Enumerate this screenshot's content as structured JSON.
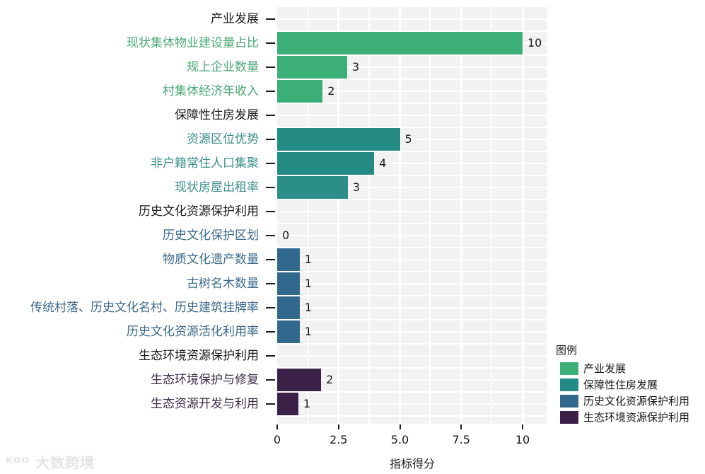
{
  "chart_data": {
    "type": "bar",
    "orientation": "horizontal",
    "title": "",
    "xlabel": "指标得分",
    "ylabel": "",
    "xlim": [
      0,
      11
    ],
    "xticks": [
      0,
      2.5,
      5.0,
      7.5,
      10
    ],
    "xtick_labels": [
      "0",
      "2.5",
      "5.0",
      "7.5",
      "10"
    ],
    "grid": true,
    "legend_position": "right-bottom",
    "legend_title": "图例",
    "categories": [
      "产业发展",
      "现状集体物业建设量占比",
      "规上企业数量",
      "村集体经济年收入",
      "保障性住房发展",
      "资源区位优势",
      "非户籍常住人口集聚",
      "现状房屋出租率",
      "历史文化资源保护利用",
      "历史文化保护区划",
      "物质文化遗产数量",
      "古树名木数量",
      "传统村落、历史文化名村、历史建筑挂牌率",
      "历史文化资源活化利用率",
      "生态环境资源保护利用",
      "生态环境保护与修复",
      "生态资源开发与利用"
    ],
    "series": [
      {
        "name": "产业发展",
        "color": "#3cae77",
        "label_color": "#4aa875",
        "items": [
          {
            "category": "现状集体物业建设量占比",
            "value": 10,
            "label": "10"
          },
          {
            "category": "规上企业数量",
            "value": 2.85,
            "label": "3"
          },
          {
            "category": "村集体经济年收入",
            "value": 1.85,
            "label": "2"
          }
        ]
      },
      {
        "name": "保障性住房发展",
        "color": "#238a84",
        "label_color": "#3a8f8a",
        "items": [
          {
            "category": "资源区位优势",
            "value": 5.0,
            "label": "5"
          },
          {
            "category": "非户籍常住人口集聚",
            "value": 3.95,
            "label": "4"
          },
          {
            "category": "现状房屋出租率",
            "value": 2.88,
            "label": "3"
          }
        ]
      },
      {
        "name": "历史文化资源保护利用",
        "color": "#31688e",
        "label_color": "#3d6a8c",
        "items": [
          {
            "category": "历史文化保护区划",
            "value": 0,
            "label": "0"
          },
          {
            "category": "物质文化遗产数量",
            "value": 0.92,
            "label": "1"
          },
          {
            "category": "古树名木数量",
            "value": 0.92,
            "label": "1"
          },
          {
            "category": "传统村落、历史文化名村、历史建筑挂牌率",
            "value": 0.92,
            "label": "1"
          },
          {
            "category": "历史文化资源活化利用率",
            "value": 0.92,
            "label": "1"
          }
        ]
      },
      {
        "name": "生态环境资源保护利用",
        "color": "#3b2147",
        "label_color": "#3f2c4b",
        "items": [
          {
            "category": "生态环境保护与修复",
            "value": 1.79,
            "label": "2"
          },
          {
            "category": "生态资源开发与利用",
            "value": 0.86,
            "label": "1"
          }
        ]
      }
    ]
  },
  "rows": [
    {
      "label": "产业发展",
      "type": "group",
      "color": "#1a1a1a"
    },
    {
      "label": "现状集体物业建设量占比",
      "type": "item",
      "value": 10,
      "value_label": "10",
      "color": "#4aa875",
      "bar_color": "#3cae77"
    },
    {
      "label": "规上企业数量",
      "type": "item",
      "value": 2.85,
      "value_label": "3",
      "color": "#4aa875",
      "bar_color": "#3cae77"
    },
    {
      "label": "村集体经济年收入",
      "type": "item",
      "value": 1.85,
      "value_label": "2",
      "color": "#4aa875",
      "bar_color": "#3cae77"
    },
    {
      "label": "保障性住房发展",
      "type": "group",
      "color": "#1a1a1a"
    },
    {
      "label": "资源区位优势",
      "type": "item",
      "value": 5.0,
      "value_label": "5",
      "color": "#3a8f8a",
      "bar_color": "#238a84"
    },
    {
      "label": "非户籍常住人口集聚",
      "type": "item",
      "value": 3.95,
      "value_label": "4",
      "color": "#3a8f8a",
      "bar_color": "#238a84"
    },
    {
      "label": "现状房屋出租率",
      "type": "item",
      "value": 2.88,
      "value_label": "3",
      "color": "#3a8f8a",
      "bar_color": "#2c8e88"
    },
    {
      "label": "历史文化资源保护利用",
      "type": "group",
      "color": "#1a1a1a"
    },
    {
      "label": "历史文化保护区划",
      "type": "item",
      "value": 0,
      "value_label": "0",
      "color": "#3d6a8c",
      "bar_color": "#31688e"
    },
    {
      "label": "物质文化遗产数量",
      "type": "item",
      "value": 0.92,
      "value_label": "1",
      "color": "#3d6a8c",
      "bar_color": "#31688e"
    },
    {
      "label": "古树名木数量",
      "type": "item",
      "value": 0.92,
      "value_label": "1",
      "color": "#3d6a8c",
      "bar_color": "#31688e"
    },
    {
      "label": "传统村落、历史文化名村、历史建筑挂牌率",
      "type": "item",
      "value": 0.92,
      "value_label": "1",
      "color": "#3d6a8c",
      "bar_color": "#31688e"
    },
    {
      "label": "历史文化资源活化利用率",
      "type": "item",
      "value": 0.92,
      "value_label": "1",
      "color": "#3d6a8c",
      "bar_color": "#31688e"
    },
    {
      "label": "生态环境资源保护利用",
      "type": "group",
      "color": "#1a1a1a"
    },
    {
      "label": "生态环境保护与修复",
      "type": "item",
      "value": 1.79,
      "value_label": "2",
      "color": "#3f2c4b",
      "bar_color": "#3b2147"
    },
    {
      "label": "生态资源开发与利用",
      "type": "item",
      "value": 0.86,
      "value_label": "1",
      "color": "#3f2c4b",
      "bar_color": "#3b2147"
    }
  ],
  "axis": {
    "xlabel": "指标得分",
    "ticks": [
      {
        "value": 0,
        "label": "0"
      },
      {
        "value": 2.5,
        "label": "2.5"
      },
      {
        "value": 5.0,
        "label": "5.0"
      },
      {
        "value": 7.5,
        "label": "7.5"
      },
      {
        "value": 10,
        "label": "10"
      }
    ]
  },
  "legend": {
    "title": "图例",
    "items": [
      {
        "label": "产业发展",
        "color": "#3cae77"
      },
      {
        "label": "保障性住房发展",
        "color": "#238a84"
      },
      {
        "label": "历史文化资源保护利用",
        "color": "#31688e"
      },
      {
        "label": "生态环境资源保护利用",
        "color": "#3b2147"
      }
    ]
  },
  "watermark": {
    "text": "ᴷᴼᴼ 大数跨境"
  }
}
